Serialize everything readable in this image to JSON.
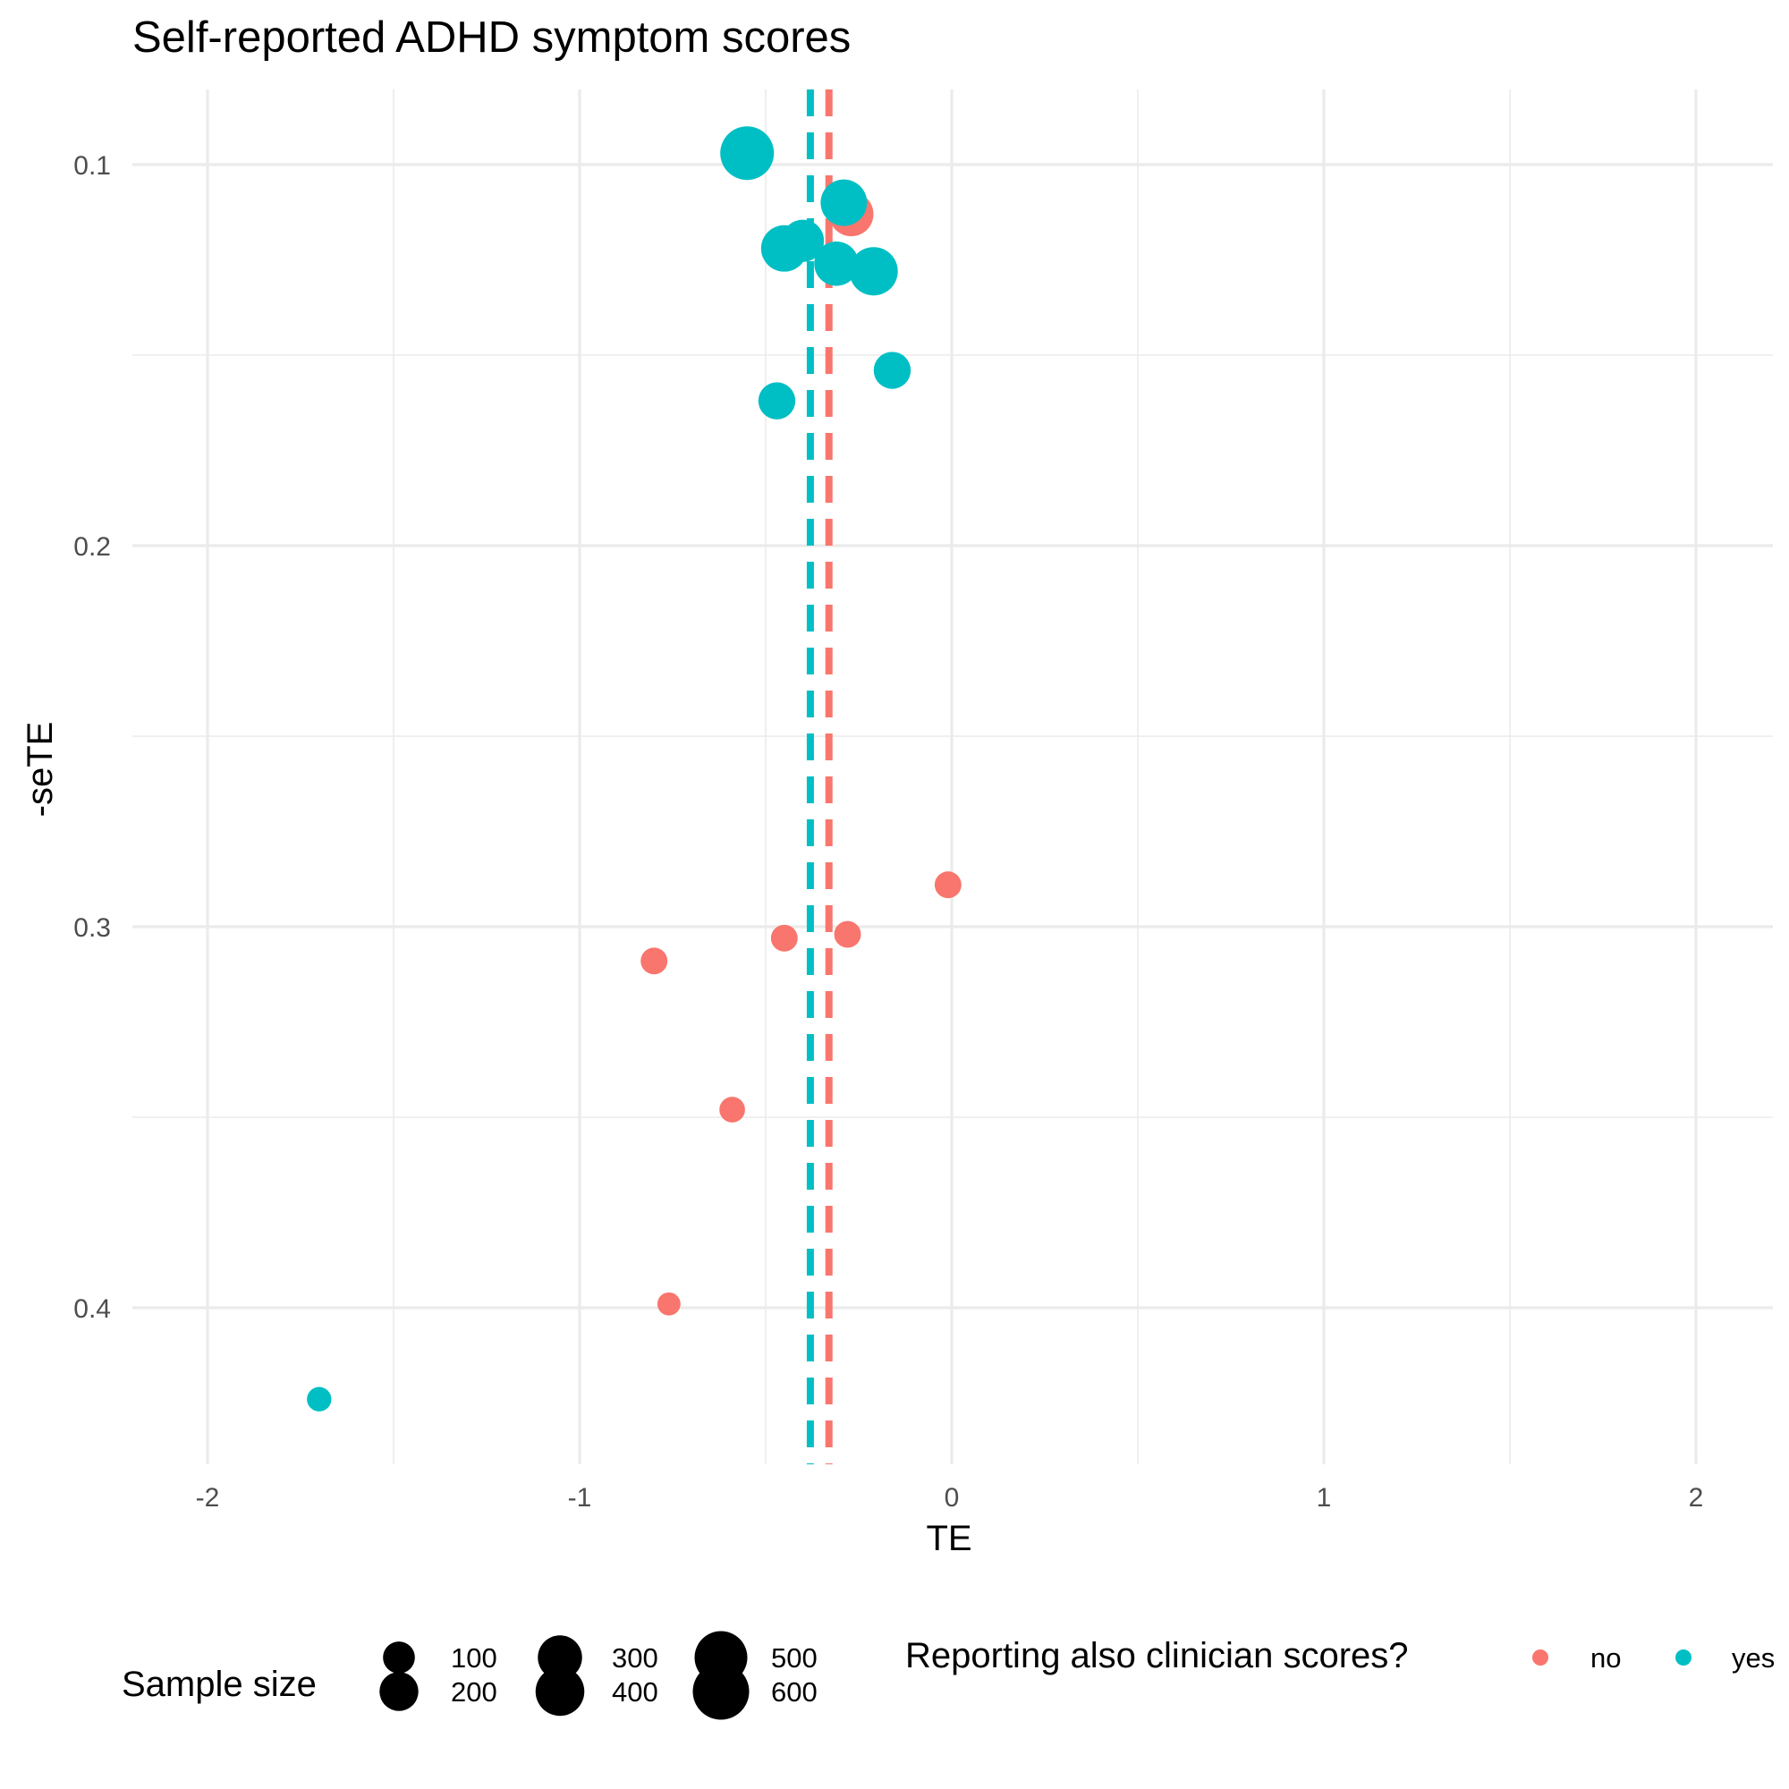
{
  "chart_data": {
    "type": "scatter",
    "title": "Self-reported ADHD symptom scores",
    "xlabel": "TE",
    "ylabel": "-seTE",
    "xlim": [
      -2.2,
      2.2
    ],
    "ylim": [
      0.08,
      0.44
    ],
    "y_reversed": true,
    "grid": true,
    "x_ticks": [
      -2,
      -1,
      0,
      1,
      2
    ],
    "x_tick_labels": [
      "-2",
      "-1",
      "0",
      "1",
      "2"
    ],
    "y_ticks": [
      0.1,
      0.2,
      0.3,
      0.4
    ],
    "y_tick_labels": [
      "0.1",
      "0.2",
      "0.3",
      "0.4"
    ],
    "reference_lines": [
      {
        "group": "no",
        "x": -0.33,
        "style": "dashed"
      },
      {
        "group": "yes",
        "x": -0.38,
        "style": "dashed"
      }
    ],
    "series": [
      {
        "name": "no",
        "color": "#F8766D",
        "points": [
          {
            "x": -0.27,
            "y": 0.113,
            "n": 350
          },
          {
            "x": -0.01,
            "y": 0.289,
            "n": 60
          },
          {
            "x": -0.45,
            "y": 0.303,
            "n": 60
          },
          {
            "x": -0.28,
            "y": 0.302,
            "n": 60
          },
          {
            "x": -0.8,
            "y": 0.309,
            "n": 60
          },
          {
            "x": -0.59,
            "y": 0.348,
            "n": 50
          },
          {
            "x": -0.76,
            "y": 0.399,
            "n": 30
          }
        ]
      },
      {
        "name": "yes",
        "color": "#00BFC4",
        "points": [
          {
            "x": -0.55,
            "y": 0.097,
            "n": 600
          },
          {
            "x": -0.29,
            "y": 0.11,
            "n": 400
          },
          {
            "x": -0.4,
            "y": 0.12,
            "n": 300
          },
          {
            "x": -0.45,
            "y": 0.122,
            "n": 400
          },
          {
            "x": -0.31,
            "y": 0.126,
            "n": 350
          },
          {
            "x": -0.21,
            "y": 0.128,
            "n": 450
          },
          {
            "x": -0.16,
            "y": 0.154,
            "n": 200
          },
          {
            "x": -0.47,
            "y": 0.162,
            "n": 200
          },
          {
            "x": -1.7,
            "y": 0.424,
            "n": 40
          }
        ]
      }
    ],
    "legend": {
      "placement": "bottom",
      "size_title": "Sample size",
      "size_items": [
        {
          "label": "100",
          "n": 100
        },
        {
          "label": "200",
          "n": 200
        },
        {
          "label": "300",
          "n": 300
        },
        {
          "label": "400",
          "n": 400
        },
        {
          "label": "500",
          "n": 500
        },
        {
          "label": "600",
          "n": 600
        }
      ],
      "color_title": "Reporting also clinician scores?",
      "color_items": [
        {
          "label": "no",
          "color": "#F8766D"
        },
        {
          "label": "yes",
          "color": "#00BFC4"
        }
      ]
    }
  }
}
